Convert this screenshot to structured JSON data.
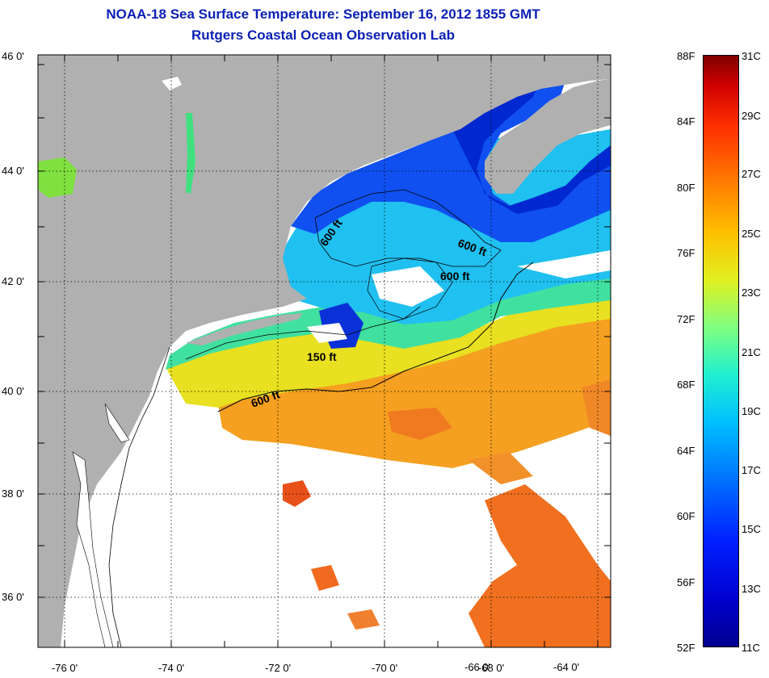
{
  "header": {
    "title": "NOAA-18 Sea Surface Temperature:  September 16, 2012 1855 GMT",
    "subtitle": "Rutgers Coastal Ocean Observation Lab"
  },
  "map": {
    "lon_labels": [
      "-76 0'",
      "-74 0'",
      "-72 0'",
      "-70 0'",
      "-68 0'",
      "-66 0'",
      "-64 0'"
    ],
    "lat_labels": [
      "46 0'",
      "44 0'",
      "42 0'",
      "40 0'",
      "38 0'",
      "36 0'"
    ],
    "contour_labels": [
      "600 ft",
      "600 ft",
      "600 ft",
      "150 ft",
      "600 ft"
    ],
    "colors": {
      "land": "#b0b0b0",
      "cloud": "#ffffff",
      "grid": "#000000"
    }
  },
  "colorbar": {
    "fahrenheit": [
      "88F",
      "84F",
      "80F",
      "76F",
      "72F",
      "68F",
      "64F",
      "60F",
      "56F",
      "52F"
    ],
    "celsius": [
      "31C",
      "29C",
      "27C",
      "25C",
      "23C",
      "21C",
      "19C",
      "17C",
      "15C",
      "13C",
      "11C"
    ]
  }
}
